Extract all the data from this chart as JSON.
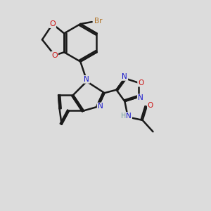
{
  "background_color": "#dcdcdc",
  "bond_color": "#1a1a1a",
  "bond_width": 1.8,
  "atom_colors": {
    "C": "#1a1a1a",
    "N": "#1515cc",
    "O": "#cc1515",
    "Br": "#b07020",
    "H": "#6a9a9a"
  },
  "figsize": [
    3.0,
    3.0
  ],
  "dpi": 100
}
